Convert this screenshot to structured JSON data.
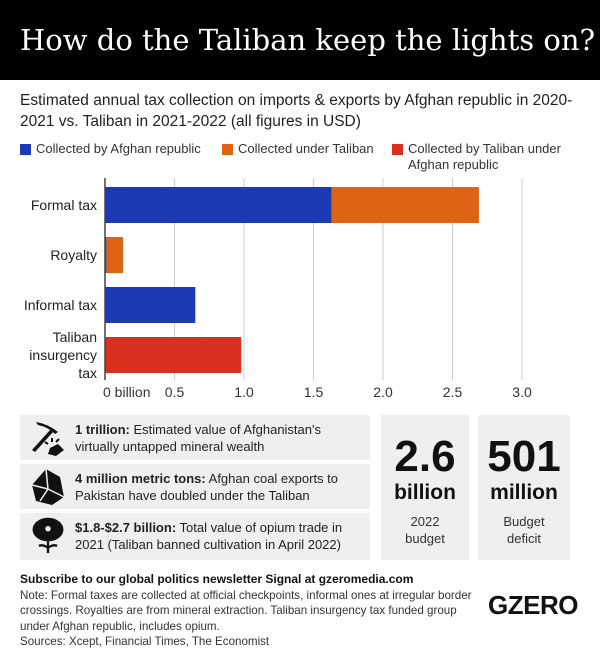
{
  "header": {
    "title": "How do the Taliban keep the lights on?"
  },
  "subtitle": "Estimated annual tax collection on imports & exports by Afghan republic in 2020-2021 vs. Taliban in 2021-2022 (all figures in USD)",
  "chart_data": {
    "type": "bar",
    "orientation": "horizontal",
    "stacked": true,
    "categories": [
      "Formal tax",
      "Royalty",
      "Informal tax",
      "Taliban insurgency tax"
    ],
    "series": [
      {
        "name": "Collected by Afghan republic",
        "color": "#1d3ab5",
        "values": [
          1.63,
          0.01,
          0.65,
          0
        ]
      },
      {
        "name": "Collected under Taliban",
        "color": "#de6313",
        "values": [
          1.06,
          0.12,
          0,
          0
        ]
      },
      {
        "name": "Collected by Taliban under Afghan republic",
        "color": "#d9311f",
        "values": [
          0,
          0,
          0,
          0.98
        ]
      }
    ],
    "xticks": [
      "0 billion",
      "0.5",
      "1.0",
      "1.5",
      "2.0",
      "2.5",
      "3.0"
    ],
    "xlim": [
      0,
      3
    ],
    "grid": true,
    "legend": "top"
  },
  "facts": [
    {
      "icon": "pickaxe-icon",
      "bold": "1 trillion:",
      "text": " Estimated value of Afghanistan's virtually untapped mineral wealth"
    },
    {
      "icon": "coal-icon",
      "bold": "4 million metric tons:",
      "text": " Afghan coal exports to Pakistan have doubled under the Taliban"
    },
    {
      "icon": "poppy-icon",
      "bold": "$1.8-$2.7 billion:",
      "text": " Total value of opium trade in 2021 (Taliban banned cultivation in April 2022)"
    }
  ],
  "stats": [
    {
      "num": "2.6",
      "unit": "billion",
      "label": "2022 budget"
    },
    {
      "num": "501",
      "unit": "million",
      "label": "Budget deficit"
    }
  ],
  "footer": {
    "subscribe": "Subscribe to our global politics newsletter Signal at gzeromedia.com",
    "note": "Note: Formal taxes are collected at official checkpoints, informal ones at irregular border crossings. Royalties are from mineral extraction. Taliban insurgency tax funded group under Afghan republic, includes opium.",
    "sources": "Sources: Xcept, Financial Times, The Economist",
    "logo": "GZERO"
  }
}
